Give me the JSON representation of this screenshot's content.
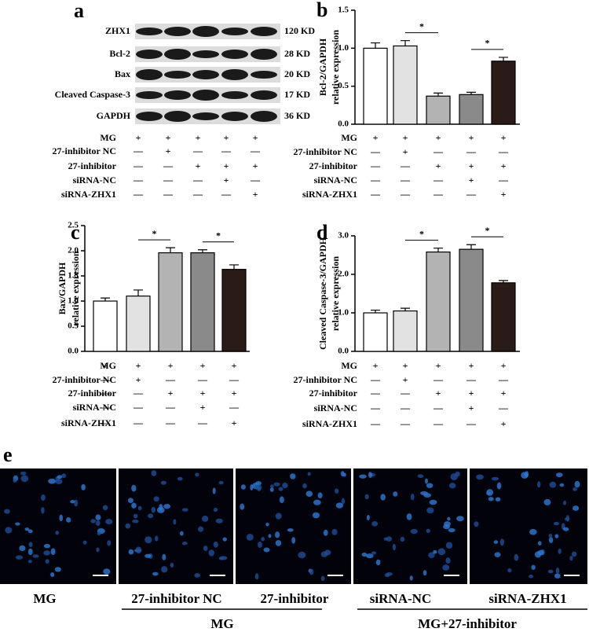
{
  "blot": {
    "panel": "a",
    "rows": [
      {
        "protein": "ZHX1",
        "size": "120 KD"
      },
      {
        "protein": "Bcl-2",
        "size": "28 KD"
      },
      {
        "protein": "Bax",
        "size": "20 KD"
      },
      {
        "protein": "Cleaved Caspase-3",
        "size": "17 KD"
      },
      {
        "protein": "GAPDH",
        "size": "36 KD"
      }
    ],
    "treatments": [
      {
        "name": "MG",
        "signs": [
          "+",
          "+",
          "+",
          "+",
          "+"
        ]
      },
      {
        "name": "27-inhibitor NC",
        "signs": [
          "—",
          "+",
          "—",
          "—",
          "—"
        ]
      },
      {
        "name": "27-inhibitor",
        "signs": [
          "—",
          "—",
          "+",
          "+",
          "+"
        ]
      },
      {
        "name": "siRNA-NC",
        "signs": [
          "—",
          "—",
          "—",
          "+",
          "—"
        ]
      },
      {
        "name": "siRNA-ZHX1",
        "signs": [
          "—",
          "—",
          "—",
          "—",
          "+"
        ]
      }
    ]
  },
  "chart_data": [
    {
      "type": "bar",
      "panel": "b",
      "ylabel": [
        "Bcl-2/GAPDH",
        "relative expression"
      ],
      "values": [
        1.0,
        1.03,
        0.37,
        0.39,
        0.83
      ],
      "errors": [
        0.07,
        0.07,
        0.04,
        0.03,
        0.05
      ],
      "colors": [
        "#ffffff",
        "#e2e2e2",
        "#b3b3b3",
        "#8a8a8a",
        "#2b1b17"
      ],
      "ylim": [
        0,
        1.5
      ],
      "yticks": [
        {
          "value": 0,
          "label": "0.0"
        },
        0.5,
        {
          "value": 1,
          "label": "1.0"
        },
        1.5
      ],
      "significance": [
        "*",
        "*"
      ],
      "treatments": [
        {
          "name": "MG",
          "signs": [
            "+",
            "+",
            "+",
            "+",
            "+"
          ]
        },
        {
          "name": "27-inhibitor NC",
          "signs": [
            "—",
            "+",
            "—",
            "—",
            "—"
          ]
        },
        {
          "name": "27-inhibitor",
          "signs": [
            "—",
            "—",
            "+",
            "+",
            "+"
          ]
        },
        {
          "name": "siRNA-NC",
          "signs": [
            "—",
            "—",
            "—",
            "+",
            "—"
          ]
        },
        {
          "name": "siRNA-ZHX1",
          "signs": [
            "—",
            "—",
            "—",
            "—",
            "+"
          ]
        }
      ]
    },
    {
      "type": "bar",
      "panel": "c",
      "ylabel": [
        "Bax/GAPDH",
        "relative expression"
      ],
      "values": [
        1.0,
        1.1,
        1.96,
        1.96,
        1.63
      ],
      "errors": [
        0.06,
        0.12,
        0.1,
        0.06,
        0.09
      ],
      "colors": [
        "#ffffff",
        "#e2e2e2",
        "#b3b3b3",
        "#8a8a8a",
        "#2b1b17"
      ],
      "ylim": [
        0,
        2.5
      ],
      "yticks": [
        {
          "value": 0,
          "label": "0.0"
        },
        0.5,
        {
          "value": 1,
          "label": "1.0"
        },
        1.5,
        {
          "value": 2,
          "label": "2.0"
        },
        2.5
      ],
      "significance": [
        "*",
        "*"
      ],
      "treatments": [
        {
          "name": "MG",
          "signs": [
            "+",
            "+",
            "+",
            "+",
            "+"
          ]
        },
        {
          "name": "27-inhibitor NC",
          "signs": [
            "—",
            "+",
            "—",
            "—",
            "—"
          ]
        },
        {
          "name": "27-inhibitor",
          "signs": [
            "—",
            "—",
            "+",
            "+",
            "+"
          ]
        },
        {
          "name": "siRNA-NC",
          "signs": [
            "—",
            "—",
            "—",
            "+",
            "—"
          ]
        },
        {
          "name": "siRNA-ZHX1",
          "signs": [
            "—",
            "—",
            "—",
            "—",
            "+"
          ]
        }
      ]
    },
    {
      "type": "bar",
      "panel": "d",
      "ylabel": [
        "Cleaved Caspase-3/GAPDH",
        "relative expression"
      ],
      "values": [
        1.0,
        1.05,
        2.58,
        2.65,
        1.78
      ],
      "errors": [
        0.07,
        0.07,
        0.1,
        0.12,
        0.06
      ],
      "colors": [
        "#ffffff",
        "#e2e2e2",
        "#b3b3b3",
        "#8a8a8a",
        "#2b1b17"
      ],
      "ylim": [
        0,
        3
      ],
      "yticks": [
        {
          "value": 0,
          "label": "0.0"
        },
        {
          "value": 1,
          "label": "1.0"
        },
        {
          "value": 2,
          "label": "2.0"
        },
        {
          "value": 3,
          "label": "3.0"
        }
      ],
      "significance": [
        "*",
        "*"
      ],
      "treatments": [
        {
          "name": "MG",
          "signs": [
            "+",
            "+",
            "+",
            "+",
            "+"
          ]
        },
        {
          "name": "27-inhibitor NC",
          "signs": [
            "—",
            "+",
            "—",
            "—",
            "—"
          ]
        },
        {
          "name": "27-inhibitor",
          "signs": [
            "—",
            "—",
            "+",
            "+",
            "+"
          ]
        },
        {
          "name": "siRNA-NC",
          "signs": [
            "—",
            "—",
            "—",
            "+",
            "—"
          ]
        },
        {
          "name": "siRNA-ZHX1",
          "signs": [
            "—",
            "—",
            "—",
            "—",
            "+"
          ]
        }
      ]
    }
  ],
  "images": {
    "panel": "e",
    "labels": [
      "MG",
      "27-inhibitor NC",
      "27-inhibitor",
      "siRNA-NC",
      "siRNA-ZHX1"
    ],
    "groups": [
      "MG",
      "MG+27-inhibitor"
    ]
  }
}
